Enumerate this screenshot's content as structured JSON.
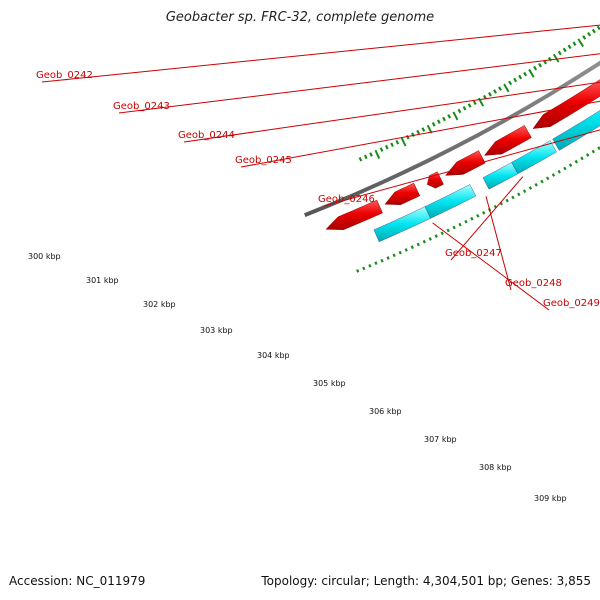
{
  "title": "Geobacter sp. FRC-32, complete genome",
  "footer": {
    "accession": "Accession: NC_011979",
    "summary": "Topology: circular; Length: 4,304,501 bp; Genes: 3,855"
  },
  "colors": {
    "gene_label": "#cc0000",
    "cds_red": "#ee0000",
    "purple_feature": "#6a5acd",
    "cyan_feature": "#00e5ee",
    "backbone": "#888888",
    "ticks": "#1a8c1a"
  },
  "genes": [
    {
      "label": "Geob_0242"
    },
    {
      "label": "Geob_0243"
    },
    {
      "label": "Geob_0244"
    },
    {
      "label": "Geob_0245"
    },
    {
      "label": "Geob_0246"
    },
    {
      "label": "Geob_0247"
    },
    {
      "label": "Geob_0248"
    },
    {
      "label": "Geob_0249"
    }
  ],
  "scale_labels": [
    "300 kbp",
    "301 kbp",
    "302 kbp",
    "303 kbp",
    "304 kbp",
    "305 kbp",
    "306 kbp",
    "307 kbp",
    "308 kbp",
    "309 kbp"
  ]
}
